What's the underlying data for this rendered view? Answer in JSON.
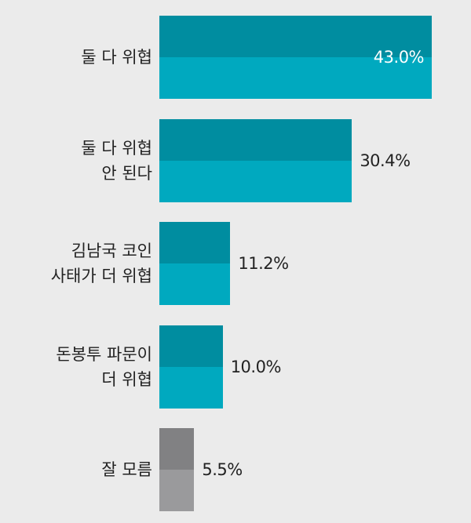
{
  "chart_data": {
    "type": "hbar",
    "categories": [
      "둘 다 위협",
      "둘 다 위협\n안 된다",
      "김남국 코인\n사태가 더 위협",
      "돈봉투 파문이\n더 위협",
      "잘 모름"
    ],
    "values": [
      43.0,
      30.4,
      11.2,
      10.0,
      5.5
    ],
    "value_labels": [
      "43.0%",
      "30.4%",
      "11.2%",
      "10.0%",
      "5.5%"
    ],
    "colors": [
      "#00a9bf",
      "#00a9bf",
      "#00a9bf",
      "#00a9bf",
      "#9a9a9c"
    ]
  }
}
